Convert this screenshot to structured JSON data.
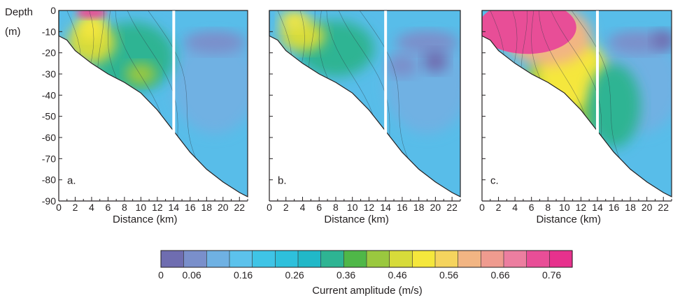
{
  "figure": {
    "y_axis_label_line1": "Depth",
    "y_axis_label_line2": "(m)",
    "x_axis_label": "Distance (km)",
    "colorbar_label": "Current amplitude (m/s)"
  },
  "chart_data": {
    "type": "heatmap",
    "panels": [
      {
        "label": "a.",
        "xlabel": "Distance (km)",
        "xlim": [
          0,
          23
        ],
        "ylim": [
          -90,
          0
        ],
        "white_line_km": 14
      },
      {
        "label": "b.",
        "xlabel": "Distance (km)",
        "xlim": [
          0,
          23
        ],
        "ylim": [
          -90,
          0
        ],
        "white_line_km": 14
      },
      {
        "label": "c.",
        "xlabel": "Distance (km)",
        "xlim": [
          0,
          23
        ],
        "ylim": [
          -90,
          0
        ],
        "white_line_km": 14
      }
    ],
    "x_ticks": [
      "0",
      "2",
      "4",
      "6",
      "8",
      "10",
      "12",
      "14",
      "16",
      "18",
      "20",
      "22"
    ],
    "y_ticks": [
      "0",
      "-10",
      "-20",
      "-30",
      "-40",
      "-50",
      "-60",
      "-70",
      "-80",
      "-90"
    ],
    "bottom_profile": [
      [
        0,
        -12
      ],
      [
        1,
        -14
      ],
      [
        2,
        -19
      ],
      [
        4,
        -25
      ],
      [
        6,
        -30
      ],
      [
        8,
        -34
      ],
      [
        10,
        -39
      ],
      [
        12,
        -47
      ],
      [
        14,
        -57
      ],
      [
        16,
        -67
      ],
      [
        18,
        -75
      ],
      [
        20,
        -81
      ],
      [
        22,
        -86
      ],
      [
        23,
        -88
      ]
    ],
    "colorbar": {
      "range": [
        0,
        0.8
      ],
      "ticks": [
        "0",
        "0.06",
        "0.16",
        "0.26",
        "0.36",
        "0.46",
        "0.56",
        "0.66",
        "0.76"
      ],
      "tick_values": [
        0,
        0.06,
        0.16,
        0.26,
        0.36,
        0.46,
        0.56,
        0.66,
        0.76
      ],
      "colors": [
        "#6f6db0",
        "#7a8fcb",
        "#6fb1e3",
        "#5cc2ec",
        "#3fc4e6",
        "#2ec0dc",
        "#21b8c8",
        "#2eb493",
        "#4fb748",
        "#9ac83f",
        "#d7db3a",
        "#f5e73c",
        "#f5d45e",
        "#f2b583",
        "#ef9b8f",
        "#ec7ea0",
        "#e84e97",
        "#e7318d"
      ]
    },
    "colors": {
      "water_mid": "#58bde9",
      "water_low": "#7ec5ee",
      "divider": "#ffffff",
      "axis": "#231f20"
    }
  }
}
